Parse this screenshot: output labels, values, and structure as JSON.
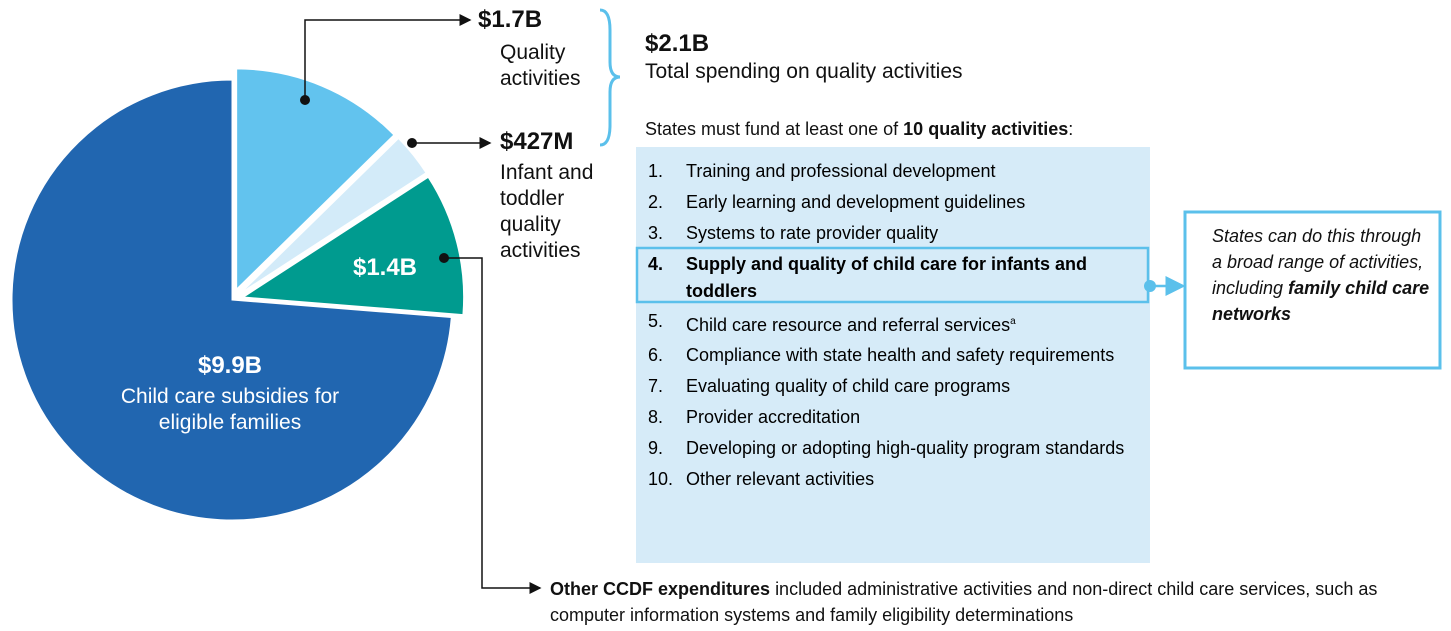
{
  "chart_data": {
    "type": "pie",
    "categories": [
      "Quality activities",
      "Infant and toddler quality activities",
      null,
      "Child care subsidies for eligible families"
    ],
    "values": [
      1.7,
      0.427,
      1.4,
      9.9
    ],
    "value_labels": [
      "$1.7B",
      "$427M",
      "$1.4B",
      "$9.9B"
    ],
    "colors": [
      "#62c3ee",
      "#d3ebf9",
      "#009b8f",
      "#2166b0"
    ]
  },
  "total": {
    "value_label": "$2.1B",
    "text": "Total spending on quality activities"
  },
  "list_intro": {
    "text": "States must fund at least one of",
    "bold": "10 quality activities",
    "end": ":"
  },
  "activities": [
    {
      "number": "1.",
      "text": "Training and professional development"
    },
    {
      "number": "2.",
      "text": "Early learning and development guidelines"
    },
    {
      "number": "3.",
      "text": "Systems to rate provider quality"
    },
    {
      "number": "4.",
      "text": "Supply and quality of child care for infants and toddlers",
      "bold": true
    },
    {
      "number": "5.",
      "text": "Child care resource and referral services",
      "footnote": "a"
    },
    {
      "number": "6.",
      "text": "Compliance with state health and safety requirements"
    },
    {
      "number": "7.",
      "text": "Evaluating quality of child care programs"
    },
    {
      "number": "8.",
      "text": "Provider accreditation"
    },
    {
      "number": "9.",
      "text": "Developing or adopting high-quality program standards"
    },
    {
      "number": "10.",
      "text": "Other relevant activities"
    }
  ],
  "callout": {
    "text": "States can do this through a broad range of activities, including",
    "bold": "family child care networks"
  },
  "note": {
    "bold": "Other CCDF expenditures",
    "text": "included administrative activities and non-direct child care services, such as computer information systems and family eligibility determinations"
  }
}
